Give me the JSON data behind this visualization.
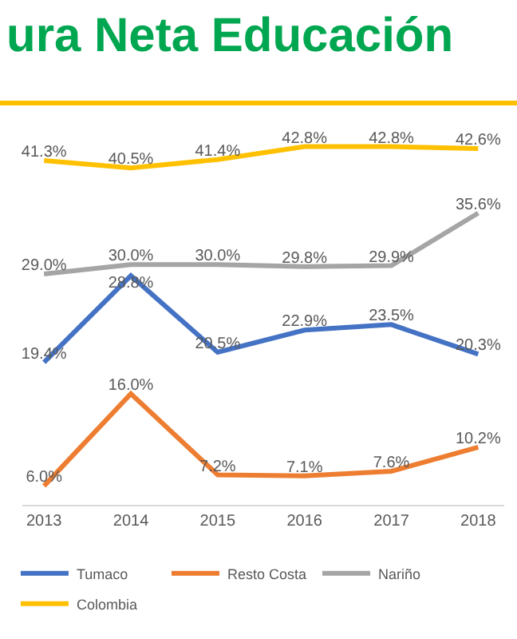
{
  "chart_data": {
    "type": "line",
    "title": "ura Neta Educación",
    "categories": [
      "2013",
      "2014",
      "2015",
      "2016",
      "2017",
      "2018"
    ],
    "series": [
      {
        "name": "Tumaco",
        "color": "#4472c4",
        "values": [
          19.4,
          28.8,
          20.5,
          22.9,
          23.5,
          20.3
        ],
        "value_labels": [
          "19.4%",
          "28.8%",
          "20.5%",
          "22.9%",
          "23.5%",
          "20.3%"
        ]
      },
      {
        "name": "Resto Costa",
        "color": "#ed7d31",
        "values": [
          6.0,
          16.0,
          7.2,
          7.1,
          7.6,
          10.2
        ],
        "value_labels": [
          "6.0%",
          "16.0%",
          "7.2%",
          "7.1%",
          "7.6%",
          "10.2%"
        ]
      },
      {
        "name": "Nariño",
        "color": "#a5a5a5",
        "values": [
          29.0,
          30.0,
          30.0,
          29.8,
          29.9,
          35.6
        ],
        "value_labels": [
          "29.0%",
          "30.0%",
          "30.0%",
          "29.8%",
          "29.9%",
          "35.6%"
        ]
      },
      {
        "name": "Colombia",
        "color": "#ffc000",
        "values": [
          41.3,
          40.5,
          41.4,
          42.8,
          42.8,
          42.6
        ],
        "value_labels": [
          "41.3%",
          "40.5%",
          "41.4%",
          "42.8%",
          "42.8%",
          "42.6%"
        ]
      }
    ],
    "legend": "bottom",
    "grid": false,
    "marker": "none",
    "line_style": "solid"
  }
}
